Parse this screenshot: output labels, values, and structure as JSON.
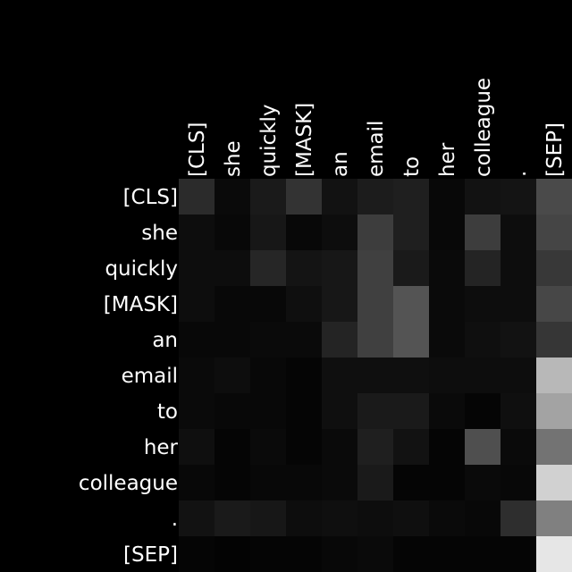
{
  "chart_data": {
    "type": "heatmap",
    "title": "",
    "xlabel": "",
    "ylabel": "",
    "colormap": "grayscale",
    "x_labels": [
      "[CLS]",
      "she",
      "quickly",
      "[MASK]",
      "an",
      "email",
      "to",
      "her",
      "colleague",
      ".",
      "[SEP]"
    ],
    "y_labels": [
      "[CLS]",
      "she",
      "quickly",
      "[MASK]",
      "an",
      "email",
      "to",
      "her",
      "colleague",
      ".",
      "[SEP]"
    ],
    "values": [
      [
        0.17,
        0.04,
        0.1,
        0.2,
        0.07,
        0.11,
        0.12,
        0.03,
        0.07,
        0.08,
        0.29
      ],
      [
        0.05,
        0.03,
        0.09,
        0.03,
        0.05,
        0.24,
        0.12,
        0.03,
        0.24,
        0.05,
        0.27
      ],
      [
        0.05,
        0.05,
        0.15,
        0.08,
        0.09,
        0.25,
        0.1,
        0.04,
        0.14,
        0.05,
        0.22
      ],
      [
        0.05,
        0.03,
        0.03,
        0.06,
        0.09,
        0.25,
        0.33,
        0.04,
        0.05,
        0.05,
        0.28
      ],
      [
        0.03,
        0.03,
        0.04,
        0.04,
        0.14,
        0.25,
        0.33,
        0.04,
        0.06,
        0.07,
        0.21
      ],
      [
        0.04,
        0.05,
        0.03,
        0.02,
        0.06,
        0.06,
        0.06,
        0.05,
        0.05,
        0.05,
        0.72
      ],
      [
        0.04,
        0.03,
        0.03,
        0.02,
        0.06,
        0.1,
        0.1,
        0.04,
        0.02,
        0.06,
        0.64
      ],
      [
        0.06,
        0.02,
        0.04,
        0.02,
        0.04,
        0.12,
        0.07,
        0.02,
        0.31,
        0.04,
        0.45
      ],
      [
        0.03,
        0.02,
        0.03,
        0.03,
        0.04,
        0.1,
        0.02,
        0.02,
        0.04,
        0.03,
        0.82
      ],
      [
        0.07,
        0.1,
        0.09,
        0.05,
        0.06,
        0.05,
        0.06,
        0.04,
        0.03,
        0.18,
        0.5
      ],
      [
        0.02,
        0.01,
        0.02,
        0.02,
        0.03,
        0.04,
        0.02,
        0.02,
        0.02,
        0.02,
        0.9
      ]
    ]
  }
}
